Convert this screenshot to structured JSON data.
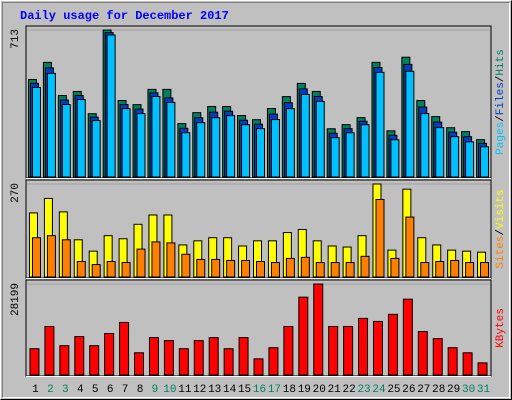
{
  "title": "Daily usage for December 2017",
  "chart_data": [
    {
      "type": "bar",
      "categories": [
        "1",
        "2",
        "3",
        "4",
        "5",
        "6",
        "7",
        "8",
        "9",
        "10",
        "11",
        "12",
        "13",
        "14",
        "15",
        "16",
        "17",
        "18",
        "19",
        "20",
        "21",
        "22",
        "23",
        "24",
        "25",
        "26",
        "27",
        "28",
        "29",
        "30",
        "31"
      ],
      "category_colors": [
        "#000000",
        "#00805c",
        "#00805c",
        "#000000",
        "#000000",
        "#000000",
        "#000000",
        "#000000",
        "#00805c",
        "#00805c",
        "#000000",
        "#000000",
        "#000000",
        "#000000",
        "#000000",
        "#00805c",
        "#00805c",
        "#000000",
        "#000000",
        "#000000",
        "#000000",
        "#000000",
        "#00805c",
        "#00805c",
        "#000000",
        "#000000",
        "#000000",
        "#000000",
        "#000000",
        "#00805c",
        "#00805c"
      ],
      "ylim": [
        0,
        713
      ],
      "yticks": [
        713
      ],
      "legend_separator": "/",
      "series": [
        {
          "name": "Hits",
          "color": "#00805c",
          "values": [
            473,
            556,
            395,
            415,
            307,
            713,
            371,
            351,
            425,
            425,
            259,
            312,
            342,
            342,
            298,
            278,
            332,
            390,
            454,
            415,
            234,
            254,
            288,
            556,
            224,
            581,
            371,
            293,
            239,
            220,
            181
          ]
        },
        {
          "name": "Files",
          "color": "#0040c0",
          "values": [
            464,
            539,
            383,
            405,
            300,
            710,
            361,
            339,
            418,
            393,
            246,
            297,
            324,
            329,
            285,
            266,
            315,
            370,
            437,
            400,
            222,
            244,
            280,
            541,
            212,
            556,
            349,
            276,
            227,
            205,
            173
          ]
        },
        {
          "name": "Pages",
          "color": "#00c0ff",
          "values": [
            454,
            522,
            371,
            395,
            293,
            708,
            351,
            327,
            410,
            381,
            234,
            283,
            307,
            317,
            273,
            254,
            298,
            351,
            420,
            386,
            210,
            234,
            273,
            527,
            200,
            532,
            327,
            259,
            215,
            190,
            166
          ]
        }
      ]
    },
    {
      "type": "bar",
      "ylim": [
        0,
        270
      ],
      "yticks": [
        270
      ],
      "legend_separator": "/",
      "series": [
        {
          "name": "Visits",
          "color": "#ffff00",
          "values": [
            186,
            228,
            189,
            108,
            75,
            120,
            111,
            153,
            180,
            180,
            93,
            105,
            114,
            114,
            90,
            105,
            105,
            129,
            138,
            105,
            90,
            87,
            120,
            270,
            78,
            255,
            114,
            93,
            78,
            75,
            72
          ]
        },
        {
          "name": "Sites",
          "color": "#ff8000",
          "values": [
            114,
            120,
            108,
            45,
            36,
            45,
            42,
            81,
            102,
            99,
            66,
            51,
            51,
            48,
            48,
            45,
            42,
            54,
            57,
            42,
            42,
            42,
            60,
            225,
            54,
            174,
            42,
            45,
            48,
            42,
            42
          ]
        }
      ]
    },
    {
      "type": "bar",
      "ylim": [
        0,
        28199
      ],
      "yticks": [
        28199
      ],
      "series": [
        {
          "name": "KBytes",
          "color": "#ff0000",
          "values": [
            8146,
            15038,
            9086,
            11905,
            9086,
            12845,
            16292,
            6893,
            11592,
            10652,
            8146,
            10652,
            11592,
            8146,
            11592,
            5013,
            8459,
            15038,
            24124,
            28199,
            15038,
            15038,
            17545,
            16605,
            18798,
            23498,
            13472,
            11279,
            8459,
            6893,
            3760
          ]
        }
      ]
    }
  ]
}
